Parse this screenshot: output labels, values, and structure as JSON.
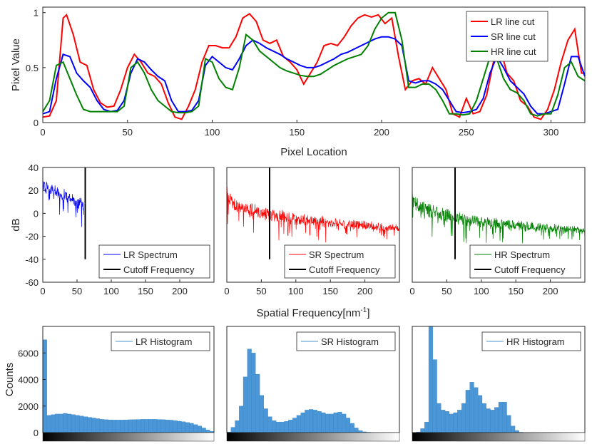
{
  "chart_data": [
    {
      "type": "line",
      "xlabel": "Pixel Location",
      "ylabel": "Pixel Value",
      "xlim": [
        0,
        320
      ],
      "ylim": [
        0,
        1.05
      ],
      "xticks": [
        "0",
        "50",
        "100",
        "150",
        "200",
        "250",
        "300"
      ],
      "yticks": [
        "0",
        "0.5",
        "1"
      ],
      "legend_position": "top-right",
      "series": [
        {
          "name": "LR line cut",
          "color": "#ff0000",
          "x": [
            0,
            4,
            8,
            12,
            14,
            18,
            22,
            26,
            30,
            34,
            38,
            42,
            46,
            50,
            54,
            58,
            62,
            66,
            70,
            74,
            78,
            82,
            86,
            90,
            94,
            98,
            102,
            106,
            110,
            114,
            118,
            122,
            126,
            130,
            134,
            138,
            142,
            146,
            150,
            154,
            158,
            162,
            166,
            170,
            174,
            178,
            182,
            186,
            190,
            194,
            198,
            202,
            206,
            210,
            214,
            218,
            222,
            226,
            230,
            234,
            238,
            242,
            246,
            250,
            254,
            258,
            262,
            266,
            270,
            274,
            278,
            282,
            286,
            290,
            294,
            298,
            302,
            306,
            310,
            314,
            318,
            320
          ],
          "y": [
            0.05,
            0.06,
            0.2,
            0.95,
            0.98,
            0.8,
            0.55,
            0.52,
            0.3,
            0.18,
            0.14,
            0.15,
            0.3,
            0.5,
            0.62,
            0.55,
            0.45,
            0.42,
            0.35,
            0.18,
            0.05,
            0.03,
            0.15,
            0.3,
            0.55,
            0.7,
            0.7,
            0.68,
            0.68,
            0.78,
            0.95,
            0.99,
            0.92,
            0.75,
            0.72,
            0.75,
            0.6,
            0.55,
            0.48,
            0.35,
            0.45,
            0.55,
            0.7,
            0.72,
            0.7,
            0.78,
            0.88,
            0.95,
            0.98,
            0.96,
            0.98,
            0.9,
            0.95,
            0.6,
            0.3,
            0.38,
            0.4,
            0.35,
            0.5,
            0.4,
            0.3,
            0.08,
            0.05,
            0.22,
            0.08,
            0.1,
            0.25,
            0.55,
            0.68,
            0.45,
            0.38,
            0.2,
            0.15,
            0.05,
            0.03,
            0.12,
            0.3,
            0.55,
            0.75,
            0.85,
            0.45,
            0.45
          ]
        },
        {
          "name": "SR line cut",
          "color": "#0000ff",
          "x": [
            0,
            4,
            8,
            12,
            16,
            20,
            24,
            28,
            32,
            36,
            40,
            44,
            48,
            52,
            56,
            60,
            64,
            68,
            72,
            76,
            80,
            84,
            88,
            92,
            96,
            100,
            104,
            108,
            112,
            116,
            120,
            124,
            128,
            132,
            136,
            140,
            144,
            148,
            152,
            156,
            160,
            164,
            168,
            172,
            176,
            180,
            184,
            188,
            192,
            196,
            200,
            204,
            208,
            212,
            216,
            220,
            224,
            228,
            232,
            236,
            240,
            244,
            248,
            252,
            256,
            260,
            264,
            268,
            272,
            276,
            280,
            284,
            288,
            292,
            296,
            300,
            304,
            308,
            312,
            316,
            320
          ],
          "y": [
            0.08,
            0.1,
            0.4,
            0.62,
            0.6,
            0.45,
            0.38,
            0.32,
            0.2,
            0.12,
            0.1,
            0.11,
            0.2,
            0.45,
            0.58,
            0.55,
            0.48,
            0.42,
            0.38,
            0.2,
            0.1,
            0.1,
            0.11,
            0.2,
            0.52,
            0.6,
            0.55,
            0.5,
            0.48,
            0.58,
            0.7,
            0.75,
            0.72,
            0.68,
            0.65,
            0.62,
            0.58,
            0.55,
            0.52,
            0.5,
            0.5,
            0.52,
            0.55,
            0.58,
            0.62,
            0.64,
            0.67,
            0.7,
            0.73,
            0.76,
            0.78,
            0.78,
            0.76,
            0.7,
            0.38,
            0.36,
            0.38,
            0.38,
            0.35,
            0.3,
            0.2,
            0.1,
            0.09,
            0.1,
            0.12,
            0.22,
            0.45,
            0.6,
            0.5,
            0.38,
            0.32,
            0.26,
            0.15,
            0.08,
            0.08,
            0.1,
            0.12,
            0.35,
            0.6,
            0.6,
            0.42
          ]
        },
        {
          "name": "HR line cut",
          "color": "#008000",
          "x": [
            0,
            4,
            8,
            12,
            16,
            20,
            24,
            28,
            32,
            36,
            40,
            44,
            48,
            52,
            56,
            60,
            64,
            68,
            72,
            76,
            80,
            84,
            88,
            92,
            96,
            100,
            104,
            108,
            112,
            116,
            120,
            124,
            128,
            132,
            136,
            140,
            144,
            148,
            152,
            156,
            160,
            164,
            168,
            172,
            176,
            180,
            184,
            188,
            192,
            196,
            200,
            204,
            208,
            212,
            216,
            220,
            224,
            228,
            232,
            236,
            240,
            244,
            248,
            252,
            256,
            260,
            264,
            268,
            272,
            276,
            280,
            284,
            288,
            292,
            296,
            300,
            304,
            308,
            312,
            316,
            320
          ],
          "y": [
            0.1,
            0.2,
            0.52,
            0.55,
            0.4,
            0.25,
            0.12,
            0.1,
            0.1,
            0.1,
            0.1,
            0.1,
            0.15,
            0.5,
            0.55,
            0.45,
            0.3,
            0.2,
            0.15,
            0.1,
            0.09,
            0.09,
            0.1,
            0.15,
            0.58,
            0.55,
            0.4,
            0.32,
            0.3,
            0.5,
            0.8,
            0.75,
            0.65,
            0.6,
            0.55,
            0.5,
            0.47,
            0.45,
            0.43,
            0.42,
            0.42,
            0.44,
            0.48,
            0.52,
            0.55,
            0.58,
            0.6,
            0.62,
            0.7,
            0.85,
            0.95,
            1.0,
            1.0,
            0.75,
            0.32,
            0.32,
            0.35,
            0.35,
            0.3,
            0.2,
            0.08,
            0.08,
            0.07,
            0.08,
            0.2,
            0.4,
            0.6,
            0.58,
            0.4,
            0.3,
            0.27,
            0.2,
            0.08,
            0.06,
            0.08,
            0.08,
            0.25,
            0.5,
            0.55,
            0.42,
            0.38
          ]
        }
      ]
    },
    {
      "type": "line",
      "xlabel": "",
      "ylabel": "dB",
      "xlim": [
        0,
        250
      ],
      "ylim": [
        -60,
        40
      ],
      "xticks": [
        "0",
        "50",
        "100",
        "150",
        "200"
      ],
      "yticks": [
        "40",
        "20",
        "0",
        "-20",
        "-40",
        "-60"
      ],
      "legend_position": "bottom-right",
      "series": [
        {
          "name": "LR Spectrum",
          "color": "#0000ff",
          "x_range": [
            0,
            60
          ],
          "start_db": 28,
          "end_db": 10,
          "noise_db": 10,
          "style": "spectrum"
        },
        {
          "name": "Cutoff Frequency",
          "color": "#000000",
          "x": [
            62,
            62
          ],
          "y": [
            -40,
            40
          ],
          "style": "line"
        }
      ]
    },
    {
      "type": "line",
      "xlabel": "Spatial Frequency[nm",
      "xlabel_sup": "-1",
      "xlabel_end": "]",
      "ylabel": "",
      "xlim": [
        0,
        250
      ],
      "ylim": [
        -60,
        40
      ],
      "xticks": [
        "0",
        "50",
        "100",
        "150",
        "200"
      ],
      "yticks": [],
      "legend_position": "bottom-right",
      "series": [
        {
          "name": "SR Spectrum",
          "color": "#ff0000",
          "x_range": [
            0,
            250
          ],
          "start_db": 25,
          "end_db": -12,
          "noise_db": 12,
          "style": "spectrum"
        },
        {
          "name": "Cutoff Frequency",
          "color": "#000000",
          "x": [
            62,
            62
          ],
          "y": [
            -40,
            40
          ],
          "style": "line"
        }
      ]
    },
    {
      "type": "line",
      "xlabel": "",
      "ylabel": "",
      "xlim": [
        0,
        250
      ],
      "ylim": [
        -60,
        40
      ],
      "xticks": [
        "0",
        "50",
        "100",
        "150",
        "200"
      ],
      "yticks": [],
      "legend_position": "bottom-right",
      "series": [
        {
          "name": "HR Spectrum",
          "color": "#008000",
          "x_range": [
            0,
            250
          ],
          "start_db": 22,
          "end_db": -14,
          "noise_db": 12,
          "style": "spectrum"
        },
        {
          "name": "Cutoff Frequency",
          "color": "#000000",
          "x": [
            62,
            62
          ],
          "y": [
            -40,
            40
          ],
          "style": "line"
        }
      ]
    },
    {
      "type": "bar",
      "name": "LR Histogram",
      "ylabel": "Counts",
      "ylim": [
        0,
        8000
      ],
      "yticks": [
        "6000",
        "4000",
        "2000",
        "0"
      ],
      "legend_position": "top-right",
      "color": "#4a96d6",
      "values": [
        7000,
        1300,
        1350,
        1400,
        1400,
        1450,
        1400,
        1350,
        1300,
        1250,
        1200,
        1150,
        1100,
        1050,
        1000,
        980,
        960,
        950,
        950,
        950,
        960,
        970,
        980,
        990,
        1000,
        1000,
        1000,
        1000,
        990,
        980,
        960,
        940,
        900,
        860,
        820,
        760,
        700,
        600,
        500,
        350,
        200,
        100
      ]
    },
    {
      "type": "bar",
      "name": "SR Histogram",
      "ylabel": "",
      "ylim": [
        0,
        8000
      ],
      "yticks": [],
      "legend_position": "top-right",
      "color": "#4a96d6",
      "values": [
        50,
        400,
        900,
        2000,
        4200,
        6300,
        6000,
        4400,
        2800,
        1800,
        1200,
        900,
        800,
        800,
        850,
        950,
        1100,
        1300,
        1500,
        1700,
        1750,
        1700,
        1600,
        1500,
        1400,
        1400,
        1500,
        1550,
        1400,
        1100,
        700,
        350,
        150,
        60,
        30,
        20,
        10,
        5,
        0,
        0,
        0,
        0
      ]
    },
    {
      "type": "bar",
      "name": "HR Histogram",
      "ylabel": "",
      "ylim": [
        0,
        8000
      ],
      "yticks": [],
      "legend_position": "top-right",
      "color": "#4a96d6",
      "values": [
        0,
        50,
        300,
        800,
        8000,
        5500,
        2200,
        1700,
        1600,
        1400,
        1500,
        1700,
        2200,
        3200,
        3800,
        3400,
        2800,
        2200,
        1800,
        1700,
        1900,
        2300,
        2300,
        1300,
        500,
        150,
        30,
        5,
        0,
        0,
        0,
        0,
        0,
        0,
        0,
        0,
        0,
        0,
        0,
        0,
        0,
        0
      ]
    }
  ]
}
